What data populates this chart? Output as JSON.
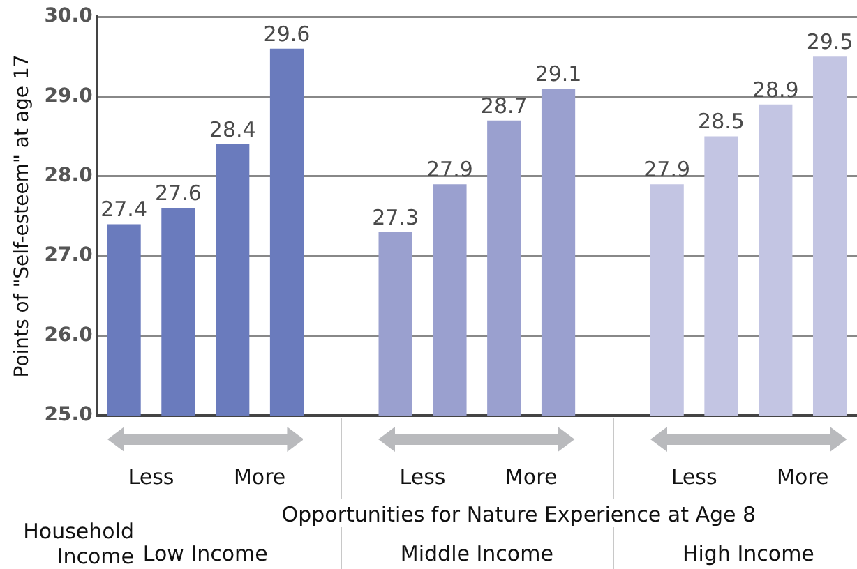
{
  "chart_data": {
    "type": "bar",
    "ylabel": "Points of \"Self-esteem\" at age 17",
    "xlabel": "Opportunities for Nature Experience at Age 8",
    "categories": [
      null,
      null,
      null,
      null,
      null,
      null,
      null,
      null,
      null,
      null,
      null,
      null,
      null,
      null
    ],
    "values": [
      27.4,
      27.6,
      28.4,
      29.6,
      null,
      27.3,
      27.9,
      28.7,
      29.1,
      null,
      27.9,
      28.5,
      28.9,
      29.5
    ],
    "colors": [
      "#6a7bbd",
      "#6a7bbd",
      "#6a7bbd",
      "#6a7bbd",
      "#ffffff",
      "#9aa0cf",
      "#9aa0cf",
      "#9aa0cf",
      "#9aa0cf",
      "#ffffff",
      "#c3c5e3",
      "#c3c5e3",
      "#c3c5e3",
      "#c3c5e3"
    ],
    "ylim": [
      25,
      30
    ],
    "yticks": [
      {
        "value": 25,
        "label": "25.0"
      },
      {
        "value": 26,
        "label": "26.0"
      },
      {
        "value": 27,
        "label": "27.0"
      },
      {
        "value": 28,
        "label": "28.0"
      },
      {
        "value": 29,
        "label": "29.0"
      },
      {
        "value": 30,
        "label": "30.0"
      }
    ],
    "grid": "y",
    "tick_labels": "y",
    "data_labels": true,
    "legend": false,
    "annotations": [
      "Less",
      "More",
      "Less",
      "More",
      "Less",
      "More",
      "Low Income",
      "Middle Income",
      "High Income",
      "Household Income"
    ]
  }
}
